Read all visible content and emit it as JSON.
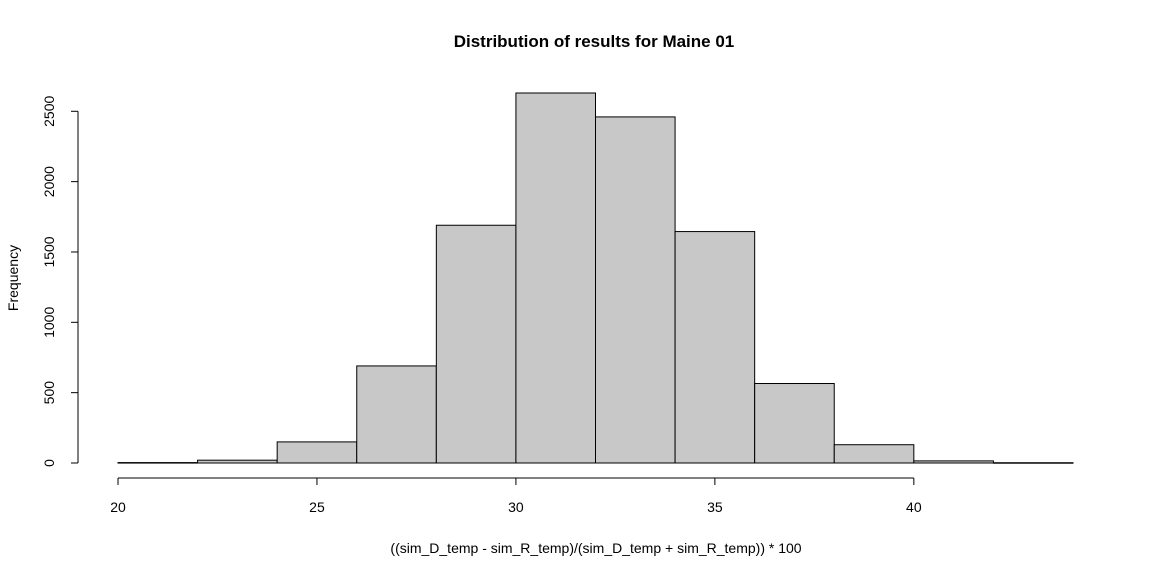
{
  "chart_data": {
    "type": "bar",
    "subtype": "histogram",
    "title": "Distribution of results for Maine 01",
    "xlabel": "((sim_D_temp - sim_R_temp)/(sim_D_temp + sim_R_temp)) * 100",
    "ylabel": "Frequency",
    "bin_edges": [
      20,
      22,
      24,
      26,
      28,
      30,
      32,
      34,
      36,
      38,
      40,
      42,
      44
    ],
    "values": [
      3,
      20,
      150,
      690,
      1690,
      2630,
      2460,
      1645,
      565,
      130,
      15,
      2
    ],
    "xlim": [
      20,
      44
    ],
    "ylim": [
      0,
      2630
    ],
    "x_ticks": [
      20,
      25,
      30,
      35,
      40
    ],
    "y_ticks": [
      0,
      500,
      1000,
      1500,
      2000,
      2500
    ],
    "bar_color": "#c8c8c8",
    "edge_color": "#000000",
    "grid": false,
    "legend": "none"
  }
}
